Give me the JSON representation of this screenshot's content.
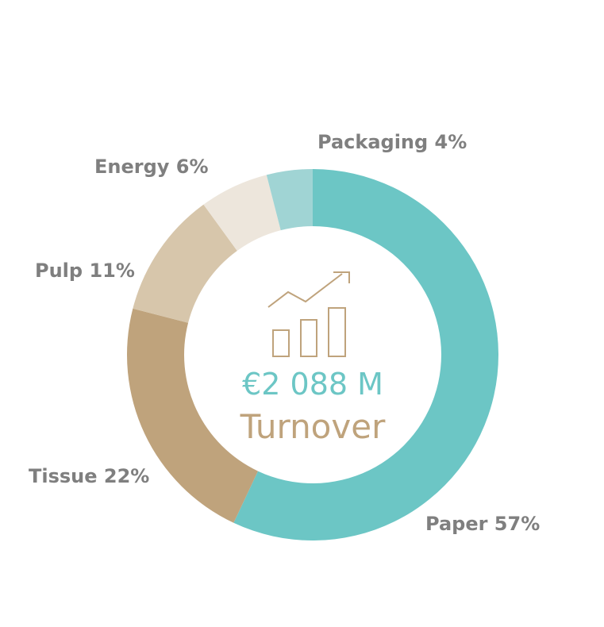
{
  "chart_data": {
    "type": "pie",
    "variant": "donut",
    "categories": [
      "Paper",
      "Tissue",
      "Pulp",
      "Energy",
      "Packaging"
    ],
    "values": [
      57,
      22,
      11,
      6,
      4
    ],
    "unit": "%",
    "labels": [
      "Paper 57%",
      "Tissue 22%",
      "Pulp 11%",
      "Energy 6%",
      "Packaging 4%"
    ],
    "colors": [
      "#6cc6c5",
      "#bfa37c",
      "#d7c6ab",
      "#ede6dc",
      "#a0d4d4"
    ],
    "center": {
      "value": "€2 088 M",
      "caption": "Turnover",
      "icon": "growth-chart-icon",
      "value_color": "#6cc6c5",
      "caption_color": "#bfa37c"
    }
  }
}
